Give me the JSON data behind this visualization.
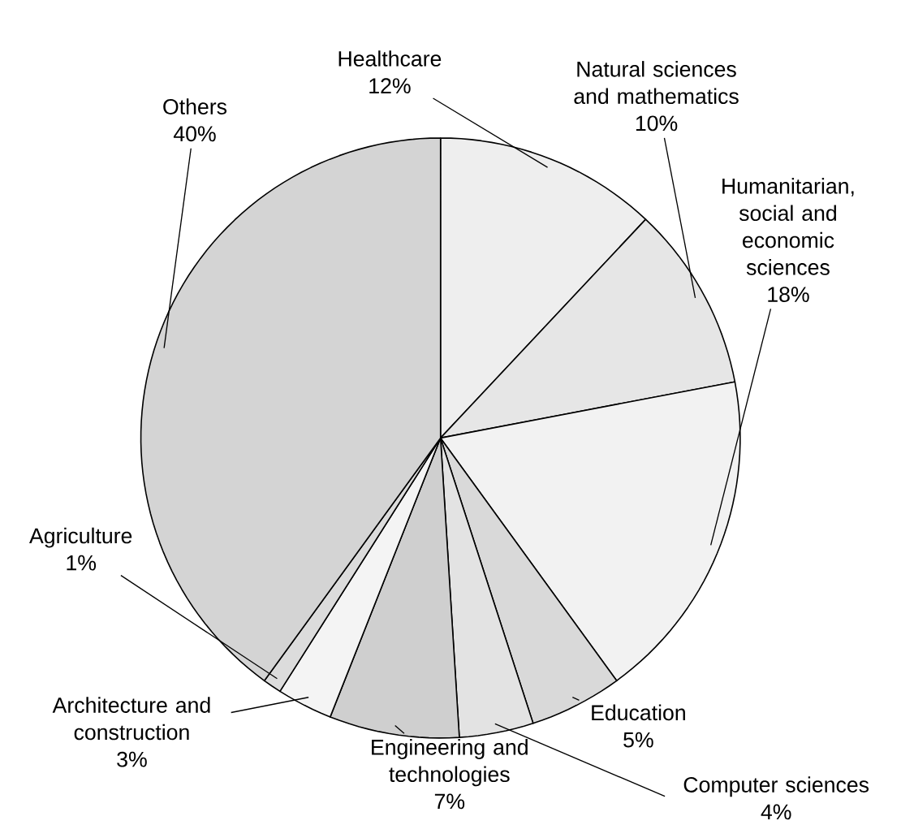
{
  "chart_data": {
    "type": "pie",
    "categories": [
      "Healthcare",
      "Natural sciences and mathematics",
      "Humanitarian, social and economic sciences",
      "Education",
      "Computer sciences",
      "Engineering and technologies",
      "Architecture and construction",
      "Agriculture",
      "Others"
    ],
    "values": [
      12,
      10,
      18,
      5,
      4,
      7,
      3,
      1,
      40
    ],
    "value_labels": [
      "12%",
      "10%",
      "18%",
      "5%",
      "4%",
      "7%",
      "3%",
      "1%",
      "40%"
    ],
    "colors": [
      "#eeeeee",
      "#e6e6e6",
      "#f2f2f2",
      "#d9d9d9",
      "#e3e3e3",
      "#cfcfcf",
      "#f4f4f4",
      "#dcdcdc",
      "#d4d4d4"
    ]
  }
}
